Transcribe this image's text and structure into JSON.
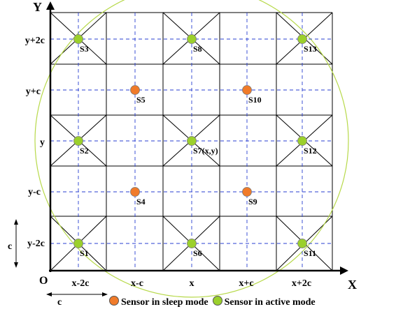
{
  "axes": {
    "x_name": "X",
    "y_name": "Y",
    "origin": "O",
    "x_ticks": [
      "x-2c",
      "x-c",
      "x",
      "x+c",
      "x+2c"
    ],
    "y_ticks": [
      "y+2c",
      "y+c",
      "y",
      "y-c",
      "y-2c"
    ],
    "dimension_label": "c"
  },
  "colors": {
    "sleep": "#f07b2a",
    "active": "#9bd02c",
    "circle": "#b7d94a",
    "dashed": "#2a3fd1",
    "grid": "#000000"
  },
  "sensors": [
    {
      "label": "S3",
      "col": 0,
      "row": 4,
      "mode": "active"
    },
    {
      "label": "S8",
      "col": 2,
      "row": 4,
      "mode": "active"
    },
    {
      "label": "S13",
      "col": 4,
      "row": 4,
      "mode": "active"
    },
    {
      "label": "S5",
      "col": 1,
      "row": 3,
      "mode": "sleep"
    },
    {
      "label": "S10",
      "col": 3,
      "row": 3,
      "mode": "sleep"
    },
    {
      "label": "S2",
      "col": 0,
      "row": 2,
      "mode": "active"
    },
    {
      "label": "S7(x,y)",
      "col": 2,
      "row": 2,
      "mode": "active"
    },
    {
      "label": "S12",
      "col": 4,
      "row": 2,
      "mode": "active"
    },
    {
      "label": "S4",
      "col": 1,
      "row": 1,
      "mode": "sleep"
    },
    {
      "label": "S9",
      "col": 3,
      "row": 1,
      "mode": "sleep"
    },
    {
      "label": "S1",
      "col": 0,
      "row": 0,
      "mode": "active"
    },
    {
      "label": "S6",
      "col": 2,
      "row": 0,
      "mode": "active"
    },
    {
      "label": "S11",
      "col": 4,
      "row": 0,
      "mode": "active"
    }
  ],
  "legend": {
    "sleep_label": "Sensor in sleep mode",
    "active_label": "Sensor in active mode"
  }
}
